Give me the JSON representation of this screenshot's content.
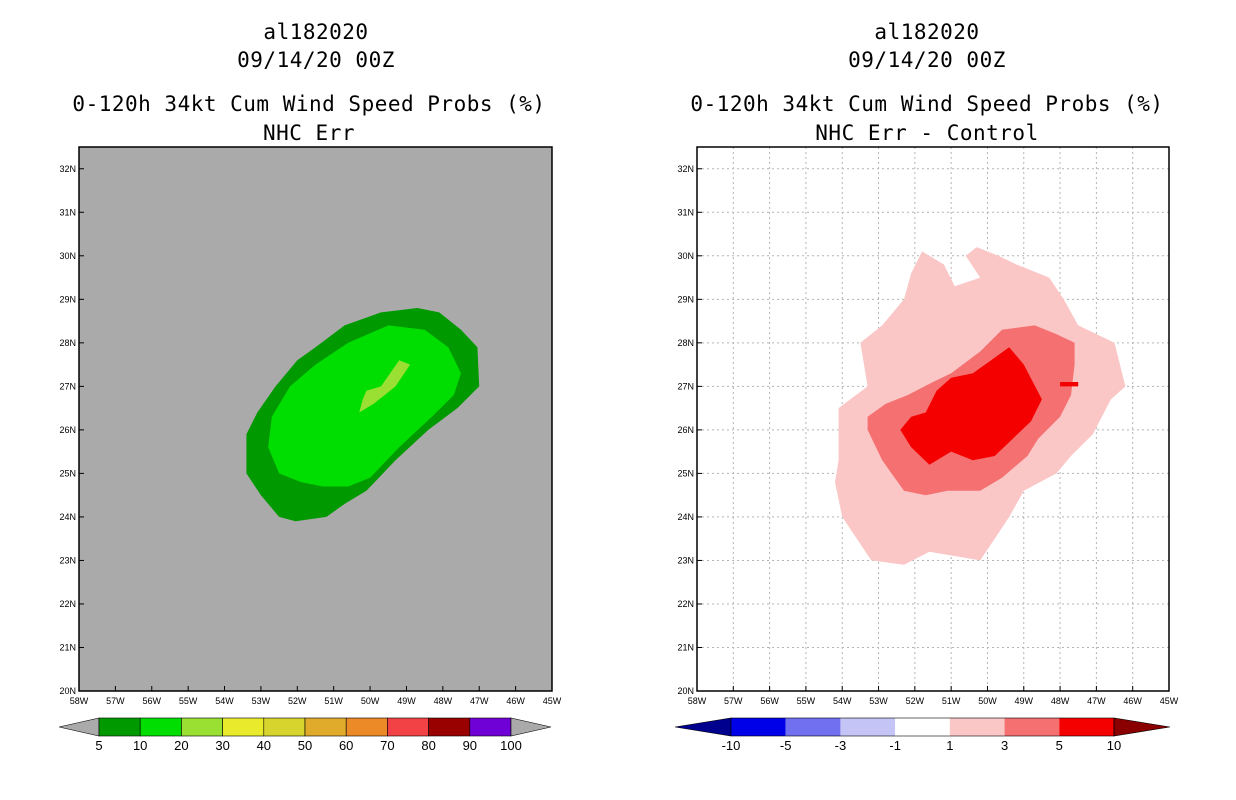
{
  "chart_data": [
    {
      "type": "contour-map",
      "titles": [
        "al182020",
        "09/14/20 00Z",
        "0-120h 34kt Cum Wind Speed Probs (%)",
        "NHC Err"
      ],
      "x_ticks": [
        "58W",
        "57W",
        "56W",
        "55W",
        "54W",
        "53W",
        "52W",
        "51W",
        "50W",
        "49W",
        "48W",
        "47W",
        "46W",
        "45W"
      ],
      "y_ticks": [
        "20N",
        "21N",
        "22N",
        "23N",
        "24N",
        "25N",
        "26N",
        "27N",
        "28N",
        "29N",
        "30N",
        "31N",
        "32N"
      ],
      "xlim": [
        -58,
        -45
      ],
      "ylim": [
        20,
        32.5
      ],
      "background": "#aaaaaa",
      "colorbar": {
        "labels": [
          "5",
          "10",
          "20",
          "30",
          "40",
          "50",
          "60",
          "70",
          "80",
          "90",
          "100"
        ],
        "colors": [
          "#009900",
          "#00dd00",
          "#99e033",
          "#e9ea2c",
          "#d7d52d",
          "#e0aa2b",
          "#ec8a28",
          "#f34245",
          "#990000",
          "#6f00d6"
        ],
        "end_colors": [
          "#aaaaaa",
          "#aaaaaa"
        ]
      },
      "contours": [
        {
          "level": "5-10",
          "color": "#009900",
          "lonlat": [
            [
              -52.05,
              23.9
            ],
            [
              -51.2,
              24.0
            ],
            [
              -50.7,
              24.3
            ],
            [
              -50.1,
              24.6
            ],
            [
              -49.3,
              25.3
            ],
            [
              -48.4,
              26.0
            ],
            [
              -47.6,
              26.5
            ],
            [
              -47.0,
              27.0
            ],
            [
              -47.05,
              27.9
            ],
            [
              -47.5,
              28.3
            ],
            [
              -48.1,
              28.7
            ],
            [
              -48.7,
              28.8
            ],
            [
              -49.7,
              28.7
            ],
            [
              -50.7,
              28.4
            ],
            [
              -51.5,
              27.9
            ],
            [
              -52.0,
              27.6
            ],
            [
              -52.6,
              27.0
            ],
            [
              -53.1,
              26.4
            ],
            [
              -53.4,
              25.9
            ],
            [
              -53.4,
              25.0
            ],
            [
              -53.0,
              24.5
            ],
            [
              -52.5,
              24.0
            ]
          ]
        },
        {
          "level": "10-20",
          "color": "#00dd00",
          "lonlat": [
            [
              -51.3,
              24.7
            ],
            [
              -50.6,
              24.7
            ],
            [
              -50.0,
              24.9
            ],
            [
              -49.2,
              25.6
            ],
            [
              -48.3,
              26.3
            ],
            [
              -47.7,
              26.8
            ],
            [
              -47.5,
              27.3
            ],
            [
              -47.85,
              27.9
            ],
            [
              -48.5,
              28.3
            ],
            [
              -49.5,
              28.4
            ],
            [
              -50.6,
              28.0
            ],
            [
              -51.5,
              27.5
            ],
            [
              -52.2,
              27.0
            ],
            [
              -52.7,
              26.3
            ],
            [
              -52.8,
              25.6
            ],
            [
              -52.5,
              25.0
            ],
            [
              -51.9,
              24.8
            ]
          ]
        },
        {
          "level": "20-30",
          "color": "#99e033",
          "lonlat": [
            [
              -50.3,
              26.4
            ],
            [
              -49.9,
              26.6
            ],
            [
              -49.3,
              27.0
            ],
            [
              -48.9,
              27.5
            ],
            [
              -49.2,
              27.6
            ],
            [
              -49.7,
              27.0
            ],
            [
              -50.1,
              26.9
            ],
            [
              -50.2,
              26.7
            ]
          ]
        }
      ]
    },
    {
      "type": "contour-map",
      "titles": [
        "al182020",
        "09/14/20 00Z",
        "0-120h 34kt Cum Wind Speed Probs (%)",
        "NHC Err - Control"
      ],
      "x_ticks": [
        "58W",
        "57W",
        "56W",
        "55W",
        "54W",
        "53W",
        "52W",
        "51W",
        "50W",
        "49W",
        "48W",
        "47W",
        "46W",
        "45W"
      ],
      "y_ticks": [
        "20N",
        "21N",
        "22N",
        "23N",
        "24N",
        "25N",
        "26N",
        "27N",
        "28N",
        "29N",
        "30N",
        "31N",
        "32N"
      ],
      "xlim": [
        -58,
        -45
      ],
      "ylim": [
        20,
        32.5
      ],
      "background": "#ffffff",
      "grid": true,
      "colorbar": {
        "labels": [
          "-10",
          "-5",
          "-3",
          "-1",
          "1",
          "3",
          "5",
          "10"
        ],
        "colors": [
          "#0000e8",
          "#7070f0",
          "#c4c4f6",
          "#ffffff",
          "#fbc6c6",
          "#f57070",
          "#f40000"
        ],
        "end_colors": [
          "#00008f",
          "#8a0000"
        ]
      },
      "contours": [
        {
          "level": "1-3",
          "color": "#fbc6c6",
          "lonlat": [
            [
              -51.8,
              30.1
            ],
            [
              -51.2,
              29.8
            ],
            [
              -50.9,
              29.3
            ],
            [
              -50.2,
              29.5
            ],
            [
              -50.6,
              30.0
            ],
            [
              -50.3,
              30.2
            ],
            [
              -49.7,
              30.0
            ],
            [
              -49.2,
              29.8
            ],
            [
              -48.3,
              29.5
            ],
            [
              -47.9,
              29.0
            ],
            [
              -47.5,
              28.4
            ],
            [
              -47.0,
              28.2
            ],
            [
              -46.5,
              28.0
            ],
            [
              -46.2,
              27.0
            ],
            [
              -46.6,
              26.7
            ],
            [
              -47.1,
              25.9
            ],
            [
              -47.7,
              25.4
            ],
            [
              -48.1,
              25.0
            ],
            [
              -49.0,
              24.6
            ],
            [
              -49.4,
              24.0
            ],
            [
              -49.8,
              23.5
            ],
            [
              -50.2,
              23.0
            ],
            [
              -51.6,
              23.2
            ],
            [
              -52.3,
              22.9
            ],
            [
              -53.2,
              23.0
            ],
            [
              -54.0,
              24.0
            ],
            [
              -54.2,
              24.8
            ],
            [
              -54.1,
              25.3
            ],
            [
              -54.1,
              26.5
            ],
            [
              -53.3,
              27.0
            ],
            [
              -53.5,
              28.0
            ],
            [
              -52.9,
              28.4
            ],
            [
              -52.3,
              29.0
            ],
            [
              -52.1,
              29.6
            ]
          ]
        },
        {
          "level": "3-5",
          "color": "#f57070",
          "lonlat": [
            [
              -51.0,
              27.3
            ],
            [
              -50.2,
              27.8
            ],
            [
              -49.6,
              28.3
            ],
            [
              -48.7,
              28.4
            ],
            [
              -48.1,
              28.2
            ],
            [
              -47.6,
              28.0
            ],
            [
              -47.6,
              27.5
            ],
            [
              -47.7,
              26.8
            ],
            [
              -48.0,
              26.3
            ],
            [
              -48.6,
              25.8
            ],
            [
              -48.9,
              25.4
            ],
            [
              -49.6,
              24.9
            ],
            [
              -50.2,
              24.6
            ],
            [
              -51.1,
              24.6
            ],
            [
              -51.7,
              24.5
            ],
            [
              -52.3,
              24.6
            ],
            [
              -52.9,
              25.3
            ],
            [
              -53.3,
              26.0
            ],
            [
              -53.3,
              26.3
            ],
            [
              -52.8,
              26.6
            ],
            [
              -52.2,
              26.8
            ],
            [
              -51.5,
              27.1
            ]
          ]
        },
        {
          "level": "5-10",
          "color": "#f40000",
          "lonlat": [
            [
              -51.4,
              26.9
            ],
            [
              -51.0,
              27.2
            ],
            [
              -50.4,
              27.3
            ],
            [
              -49.9,
              27.6
            ],
            [
              -49.4,
              27.9
            ],
            [
              -49.0,
              27.5
            ],
            [
              -48.5,
              26.7
            ],
            [
              -48.8,
              26.2
            ],
            [
              -49.3,
              25.8
            ],
            [
              -49.8,
              25.4
            ],
            [
              -50.4,
              25.3
            ],
            [
              -51.0,
              25.5
            ],
            [
              -51.6,
              25.2
            ],
            [
              -52.1,
              25.6
            ],
            [
              -52.4,
              26.0
            ],
            [
              -52.1,
              26.3
            ],
            [
              -51.7,
              26.4
            ]
          ]
        },
        {
          "level": "5-10 (small)",
          "color": "#f40000",
          "lonlat": [
            [
              -48.0,
              27.1
            ],
            [
              -47.5,
              27.1
            ],
            [
              -47.5,
              27.0
            ],
            [
              -48.0,
              27.0
            ]
          ]
        }
      ]
    }
  ]
}
